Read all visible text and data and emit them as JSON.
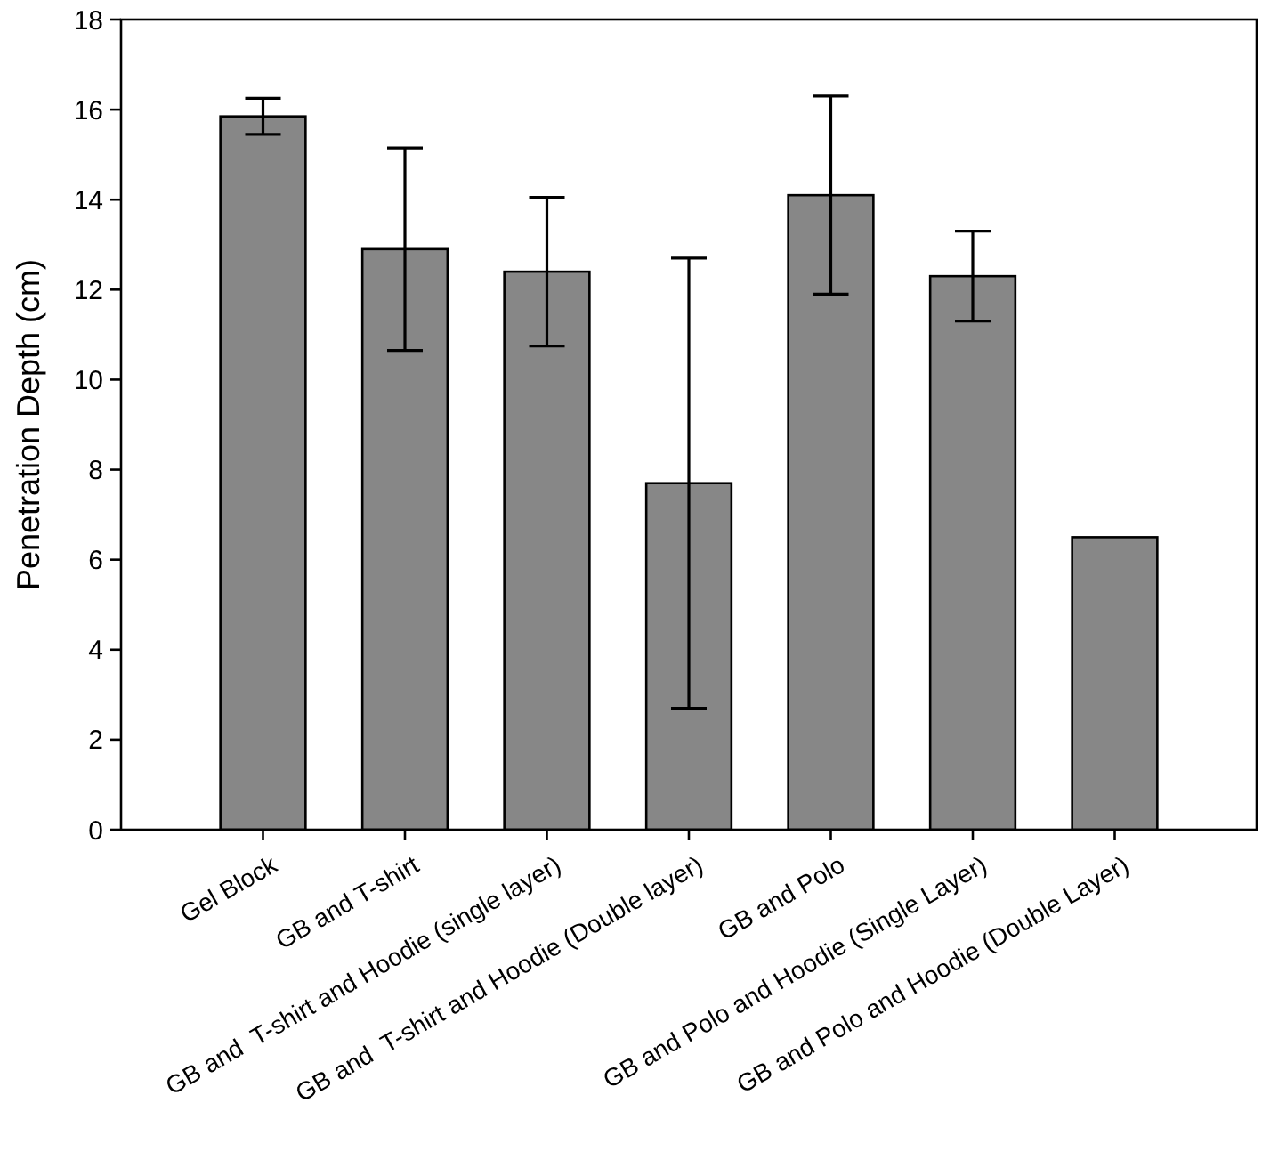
{
  "chart_data": {
    "type": "bar",
    "ylabel": "Penetration Depth (cm)",
    "categories": [
      "Gel Block",
      "GB and T-shirt",
      "GB and  T-shirt and Hoodie (single layer)",
      "GB and  T-shirt and Hoodie (Double layer)",
      "GB and Polo",
      "GB and Polo and Hoodie (Single Layer)",
      "GB and Polo and Hoodie (Double Layer)"
    ],
    "values": [
      15.85,
      12.9,
      12.4,
      7.7,
      14.1,
      12.3,
      6.5
    ],
    "errors": [
      0.4,
      2.25,
      1.65,
      5.0,
      2.2,
      1.0,
      null
    ],
    "color": "#878787",
    "ylim": [
      0,
      18
    ],
    "yticks": [
      0,
      2,
      4,
      6,
      8,
      10,
      12,
      14,
      16,
      18
    ],
    "grid": false
  }
}
